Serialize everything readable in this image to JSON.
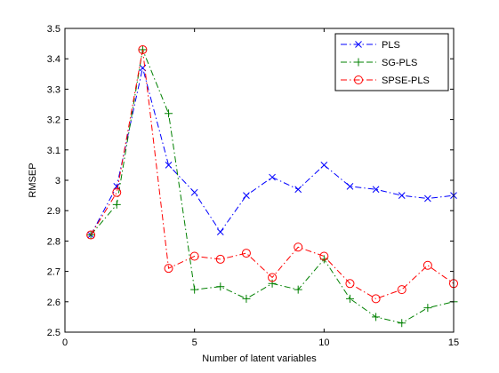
{
  "chart_data": {
    "type": "line",
    "title": "",
    "xlabel": "Number of latent variables",
    "ylabel": "RMSEP",
    "xlim": [
      0,
      15
    ],
    "ylim": [
      2.5,
      3.5
    ],
    "xticks": [
      0,
      5,
      10,
      15
    ],
    "yticks": [
      2.5,
      2.6,
      2.7,
      2.8,
      2.9,
      3,
      3.1,
      3.2,
      3.3,
      3.4,
      3.5
    ],
    "grid": false,
    "legend_position": "top-right",
    "x": [
      1,
      2,
      3,
      4,
      5,
      6,
      7,
      8,
      9,
      10,
      11,
      12,
      13,
      14,
      15
    ],
    "series": [
      {
        "name": "PLS",
        "color": "#0000ff",
        "linestyle": "dashdot",
        "marker": "x",
        "values": [
          2.82,
          2.98,
          3.37,
          3.05,
          2.96,
          2.83,
          2.95,
          3.01,
          2.97,
          3.05,
          2.98,
          2.97,
          2.95,
          2.94,
          2.95
        ]
      },
      {
        "name": "SG-PLS",
        "color": "#008000",
        "linestyle": "dashdot",
        "marker": "plus",
        "values": [
          2.82,
          2.92,
          3.43,
          3.22,
          2.64,
          2.65,
          2.61,
          2.66,
          2.64,
          2.74,
          2.61,
          2.55,
          2.53,
          2.58,
          2.6
        ]
      },
      {
        "name": "SPSE-PLS",
        "color": "#ff0000",
        "linestyle": "dashdot",
        "marker": "circle",
        "values": [
          2.82,
          2.96,
          3.43,
          2.71,
          2.75,
          2.74,
          2.76,
          2.68,
          2.78,
          2.75,
          2.66,
          2.61,
          2.64,
          2.72,
          2.66
        ]
      }
    ]
  }
}
